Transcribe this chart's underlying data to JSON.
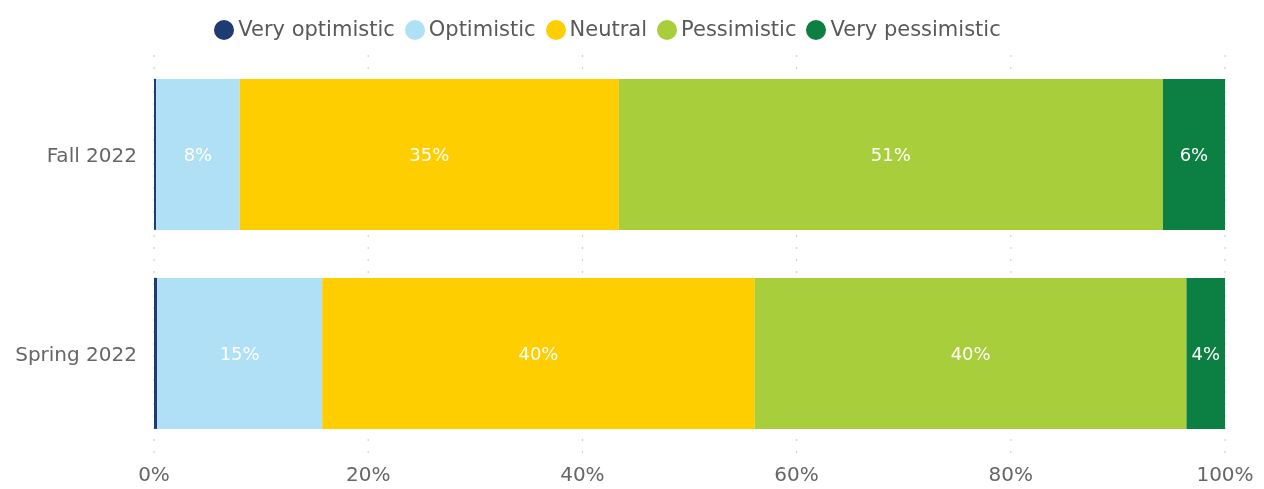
{
  "chart_data": {
    "type": "bar",
    "orientation": "horizontal",
    "stacked": true,
    "categories": [
      "Fall 2022",
      "Spring 2022"
    ],
    "series": [
      {
        "name": "Very optimistic",
        "color": "#1f3b73",
        "values": [
          0.2,
          0.3
        ],
        "value_labels": [
          null,
          null
        ]
      },
      {
        "name": "Optimistic",
        "color": "#afe0f5",
        "values": [
          7.8,
          15.4
        ],
        "value_labels": [
          "8%",
          "15%"
        ]
      },
      {
        "name": "Neutral",
        "color": "#ffce00",
        "values": [
          35.4,
          40.4
        ],
        "value_labels": [
          "35%",
          "40%"
        ]
      },
      {
        "name": "Pessimistic",
        "color": "#a8cf3b",
        "values": [
          50.8,
          40.3
        ],
        "value_labels": [
          "51%",
          "40%"
        ]
      },
      {
        "name": "Very pessimistic",
        "color": "#0b8042",
        "values": [
          5.8,
          3.6
        ],
        "value_labels": [
          "6%",
          "4%"
        ]
      }
    ],
    "xlim": [
      0,
      100
    ],
    "xticks": [
      {
        "value": 0,
        "label": "0%"
      },
      {
        "value": 20,
        "label": "20%"
      },
      {
        "value": 40,
        "label": "40%"
      },
      {
        "value": 60,
        "label": "60%"
      },
      {
        "value": 80,
        "label": "80%"
      },
      {
        "value": 100,
        "label": "100%"
      }
    ],
    "grid": "x",
    "legend": "top"
  }
}
